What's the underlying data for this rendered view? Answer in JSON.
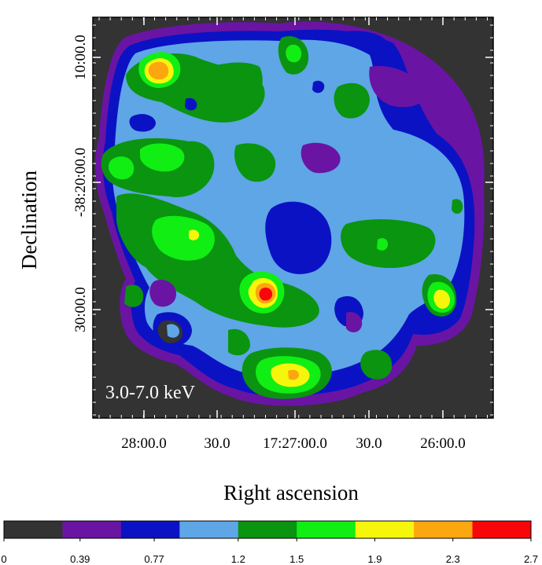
{
  "chart_data": {
    "type": "heatmap",
    "xlabel": "Right ascension",
    "ylabel": "Declination",
    "annotation": "3.0-7.0 keV",
    "x_ticks": [
      "28:00.0",
      "30.0",
      "17:27:00.0",
      "30.0",
      "26:00.0"
    ],
    "y_ticks": [
      "10:00.0",
      "-38:20:00.0",
      "30:00.0"
    ],
    "colorbar": {
      "tick_labels": [
        "0",
        "0.39",
        "0.77",
        "1.2",
        "1.5",
        "1.9",
        "2.3",
        "2.7"
      ],
      "colors": [
        "#333333",
        "#6a14a4",
        "#0b12c4",
        "#5ea6e6",
        "#0a9410",
        "#10ee14",
        "#f6f60c",
        "#fca610",
        "#f8060a"
      ],
      "range": [
        0,
        2.7
      ]
    },
    "regions": [
      {
        "level": 1,
        "kind": "remnant-envelope"
      },
      {
        "level": 2,
        "kind": "remnant-body"
      },
      {
        "level": 3,
        "kind": "diffuse-emission"
      },
      {
        "level": 4,
        "kind": "filaments"
      },
      {
        "level": 5,
        "kind": "bright-knots"
      },
      {
        "level": 6,
        "kind": "hot-spots"
      },
      {
        "level": 7,
        "kind": "peaks"
      },
      {
        "level": 8,
        "kind": "central-peak"
      }
    ]
  }
}
